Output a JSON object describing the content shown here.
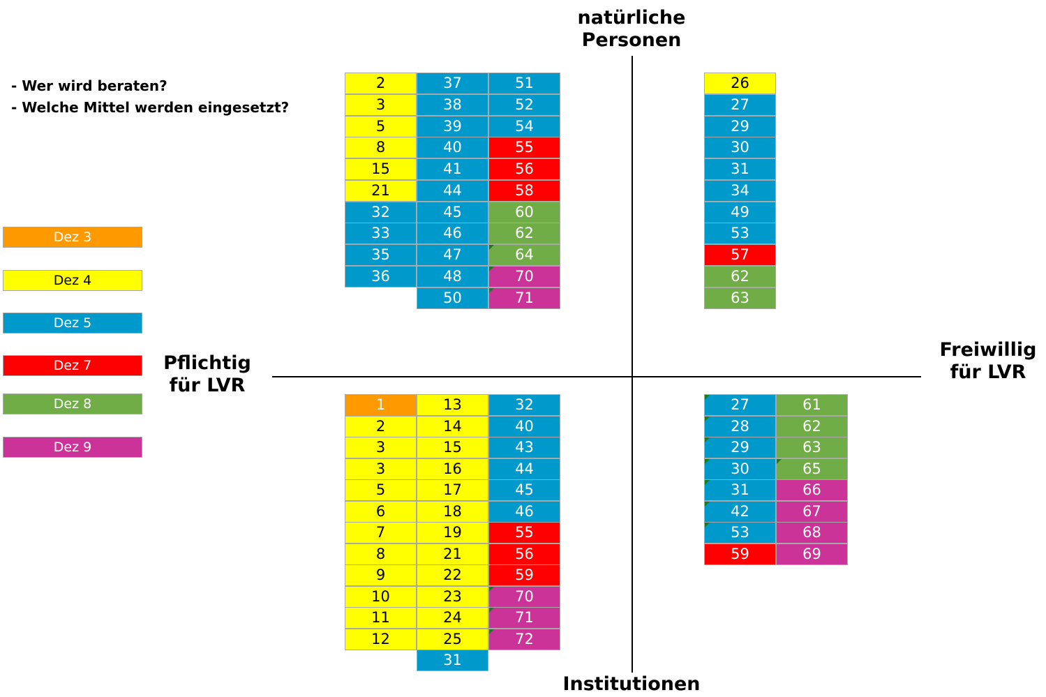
{
  "axes": {
    "top": "natürliche Personen",
    "bottom": "Institutionen",
    "left": "Pflichtig für LVR",
    "right": "Freiwillig für LVR"
  },
  "questions": [
    "- Wer wird beraten?",
    "- Welche Mittel werden eingesetzt?"
  ],
  "colors": {
    "d3": "#ff9900",
    "d4": "#ffff00",
    "d5": "#0099cc",
    "d7": "#ff0000",
    "d8": "#70ad47",
    "d9": "#cc3399"
  },
  "legend": [
    {
      "label": "Dez 3",
      "dez": "d3"
    },
    {
      "label": "Dez 4",
      "dez": "d4"
    },
    {
      "label": "Dez 5",
      "dez": "d5"
    },
    {
      "label": "Dez 7",
      "dez": "d7"
    },
    {
      "label": "Dez 8",
      "dez": "d8"
    },
    {
      "label": "Dez 9",
      "dez": "d9"
    }
  ],
  "quadrants": [
    {
      "id": "top-left",
      "columns": [
        [
          [
            "2",
            "d4"
          ],
          [
            "3",
            "d4"
          ],
          [
            "5",
            "d4"
          ],
          [
            "8",
            "d4"
          ],
          [
            "15",
            "d4"
          ],
          [
            "21",
            "d4"
          ],
          [
            "32",
            "d5"
          ],
          [
            "33",
            "d5"
          ],
          [
            "35",
            "d5"
          ],
          [
            "36",
            "d5"
          ]
        ],
        [
          [
            "37",
            "d5"
          ],
          [
            "38",
            "d5"
          ],
          [
            "39",
            "d5"
          ],
          [
            "40",
            "d5"
          ],
          [
            "41",
            "d5"
          ],
          [
            "44",
            "d5"
          ],
          [
            "45",
            "d5"
          ],
          [
            "46",
            "d5"
          ],
          [
            "47",
            "d5"
          ],
          [
            "48",
            "d5"
          ],
          [
            "50",
            "d5"
          ]
        ],
        [
          [
            "51",
            "d5"
          ],
          [
            "52",
            "d5"
          ],
          [
            "54",
            "d5"
          ],
          [
            "55",
            "d7"
          ],
          [
            "56",
            "d7"
          ],
          [
            "58",
            "d7"
          ],
          [
            "60",
            "d8"
          ],
          [
            "62",
            "d8"
          ],
          [
            "64",
            "d8",
            1
          ],
          [
            "70",
            "d9",
            1
          ],
          [
            "71",
            "d9",
            1
          ]
        ]
      ]
    },
    {
      "id": "top-right",
      "columns": [
        [
          [
            "26",
            "d4"
          ],
          [
            "27",
            "d5"
          ],
          [
            "29",
            "d5"
          ],
          [
            "30",
            "d5"
          ],
          [
            "31",
            "d5"
          ],
          [
            "34",
            "d5"
          ],
          [
            "49",
            "d5"
          ],
          [
            "53",
            "d5"
          ],
          [
            "57",
            "d7"
          ],
          [
            "62",
            "d8"
          ],
          [
            "63",
            "d8"
          ]
        ]
      ]
    },
    {
      "id": "bottom-left",
      "columns": [
        [
          [
            "1",
            "d3"
          ],
          [
            "2",
            "d4"
          ],
          [
            "3",
            "d4"
          ],
          [
            "3",
            "d4"
          ],
          [
            "5",
            "d4"
          ],
          [
            "6",
            "d4"
          ],
          [
            "7",
            "d4"
          ],
          [
            "8",
            "d4"
          ],
          [
            "9",
            "d4"
          ],
          [
            "10",
            "d4"
          ],
          [
            "11",
            "d4"
          ],
          [
            "12",
            "d4"
          ]
        ],
        [
          [
            "13",
            "d4"
          ],
          [
            "14",
            "d4"
          ],
          [
            "15",
            "d4"
          ],
          [
            "16",
            "d4"
          ],
          [
            "17",
            "d4"
          ],
          [
            "18",
            "d4"
          ],
          [
            "19",
            "d4"
          ],
          [
            "21",
            "d4"
          ],
          [
            "22",
            "d4"
          ],
          [
            "23",
            "d4"
          ],
          [
            "24",
            "d4"
          ],
          [
            "25",
            "d4"
          ],
          [
            "31",
            "d5"
          ]
        ],
        [
          [
            "32",
            "d5"
          ],
          [
            "40",
            "d5"
          ],
          [
            "43",
            "d5"
          ],
          [
            "44",
            "d5"
          ],
          [
            "45",
            "d5"
          ],
          [
            "46",
            "d5"
          ],
          [
            "55",
            "d7"
          ],
          [
            "56",
            "d7"
          ],
          [
            "59",
            "d7"
          ],
          [
            "70",
            "d9",
            1
          ],
          [
            "71",
            "d9",
            1
          ],
          [
            "72",
            "d9",
            1
          ]
        ]
      ]
    },
    {
      "id": "bottom-right",
      "columns": [
        [
          [
            "27",
            "d5",
            1
          ],
          [
            "28",
            "d5",
            1
          ],
          [
            "29",
            "d5",
            1
          ],
          [
            "30",
            "d5",
            1
          ],
          [
            "31",
            "d5",
            1
          ],
          [
            "42",
            "d5",
            1
          ],
          [
            "53",
            "d5",
            1
          ],
          [
            "59",
            "d7"
          ]
        ],
        [
          [
            "61",
            "d8"
          ],
          [
            "62",
            "d8"
          ],
          [
            "63",
            "d8"
          ],
          [
            "65",
            "d8",
            1
          ],
          [
            "66",
            "d9"
          ],
          [
            "67",
            "d9"
          ],
          [
            "68",
            "d9"
          ],
          [
            "69",
            "d9"
          ]
        ]
      ]
    }
  ]
}
